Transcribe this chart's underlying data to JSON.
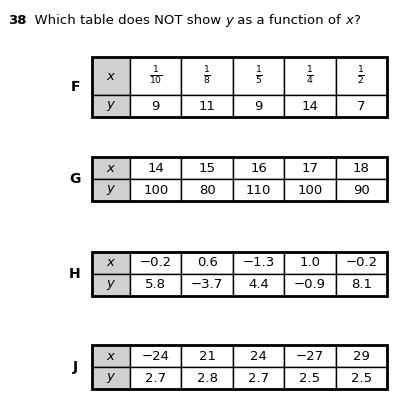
{
  "tables": [
    {
      "label": "F",
      "x_values": [
        "\\frac{1}{10}",
        "\\frac{1}{8}",
        "\\frac{1}{5}",
        "\\frac{1}{4}",
        "\\frac{1}{2}"
      ],
      "y_values": [
        "9",
        "11",
        "9",
        "14",
        "7"
      ],
      "x_is_fraction": true
    },
    {
      "label": "G",
      "x_values": [
        "14",
        "15",
        "16",
        "17",
        "18"
      ],
      "y_values": [
        "100",
        "80",
        "110",
        "100",
        "90"
      ],
      "x_is_fraction": false
    },
    {
      "label": "H",
      "x_values": [
        "−0.2",
        "0.6",
        "−1.3",
        "1.0",
        "−0.2"
      ],
      "y_values": [
        "5.8",
        "−3.7",
        "4.4",
        "−0.9",
        "8.1"
      ],
      "x_is_fraction": false
    },
    {
      "label": "J",
      "x_values": [
        "−24",
        "21",
        "24",
        "−27",
        "29"
      ],
      "y_values": [
        "2.7",
        "2.8",
        "2.7",
        "2.5",
        "2.5"
      ],
      "x_is_fraction": false
    }
  ],
  "header_bg": "#d0d0d0",
  "cell_bg": "#ffffff",
  "border_color": "#000000",
  "text_color": "#000000",
  "bg_color": "#ffffff",
  "title_num": "38",
  "title_rest": "  Which table does NOT show ",
  "title_y_part": "y",
  "title_mid": " as a function of ",
  "title_x_part": "x",
  "title_end": "?"
}
